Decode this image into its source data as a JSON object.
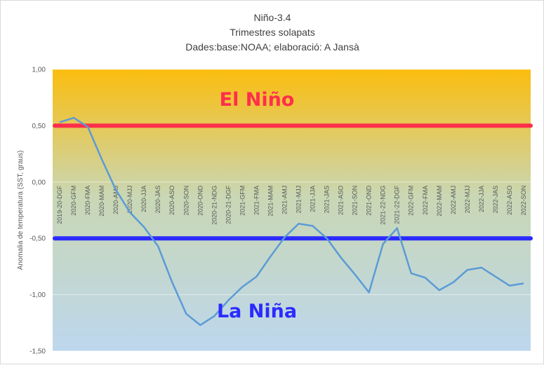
{
  "chart_data": {
    "type": "line",
    "title": [
      "Niño-3.4",
      "Trimestres solapats",
      "Dades:base:NOAA; elaboració: A Jansà"
    ],
    "ylabel": "Anomalia de temperatura (SST, graus)",
    "xlabel": "",
    "ylim": [
      -1.5,
      1.0
    ],
    "y_ticks": [
      "1,00",
      "0,50",
      "0,00",
      "-0,50",
      "-1,00",
      "-1,50"
    ],
    "y_tick_values": [
      1.0,
      0.5,
      0.0,
      -0.5,
      -1.0,
      -1.5
    ],
    "categories": [
      "2019-20-DGF",
      "2020-GFM",
      "2020-FMA",
      "2020-MAM",
      "2020-AMJ",
      "2020-MJJ",
      "2020-JJA",
      "2020-JAS",
      "2020-ASO",
      "2020-SON",
      "2020-OND",
      "2020-21-NDG",
      "2020-21-DGF",
      "2021-GFM",
      "2021-FMA",
      "2021-MAM",
      "2021-AMJ",
      "2021-MJJ",
      "2021-JJA",
      "2021-JAS",
      "2021-ASO",
      "2021-SON",
      "2021-OND",
      "2021-22-NDG",
      "2021-22-DGF",
      "2022-GFM",
      "2022-FMA",
      "2022-MAM",
      "2022-AMJ",
      "2022-MJJ",
      "2022-JJA",
      "2022-JAS",
      "2022-ASO",
      "2022-SON"
    ],
    "series": [
      {
        "values": [
          0.53,
          0.57,
          0.49,
          0.2,
          -0.07,
          -0.27,
          -0.4,
          -0.57,
          -0.89,
          -1.17,
          -1.27,
          -1.19,
          -1.05,
          -0.93,
          -0.84,
          -0.66,
          -0.49,
          -0.37,
          -0.39,
          -0.5,
          -0.67,
          -0.82,
          -0.98,
          -0.55,
          -0.41,
          -0.81,
          -0.85,
          -0.96,
          -0.89,
          -0.78,
          -0.76,
          -0.84,
          -0.92,
          -0.9
        ],
        "color": "#5b9bd5"
      }
    ],
    "thresholds": [
      {
        "value": 0.5,
        "color": "#ff2e4c"
      },
      {
        "value": -0.5,
        "color": "#2b2bff"
      }
    ],
    "annotations": [
      {
        "text": "El Niño",
        "color": "#ff2e4c",
        "y": 0.74
      },
      {
        "text": "La Niña",
        "color": "#2b2bff",
        "y": -1.14
      }
    ],
    "background_gradient": [
      "#fbbd0e",
      "#c9d7b4",
      "#bdd7ee"
    ],
    "grid": true,
    "legend": "none"
  }
}
